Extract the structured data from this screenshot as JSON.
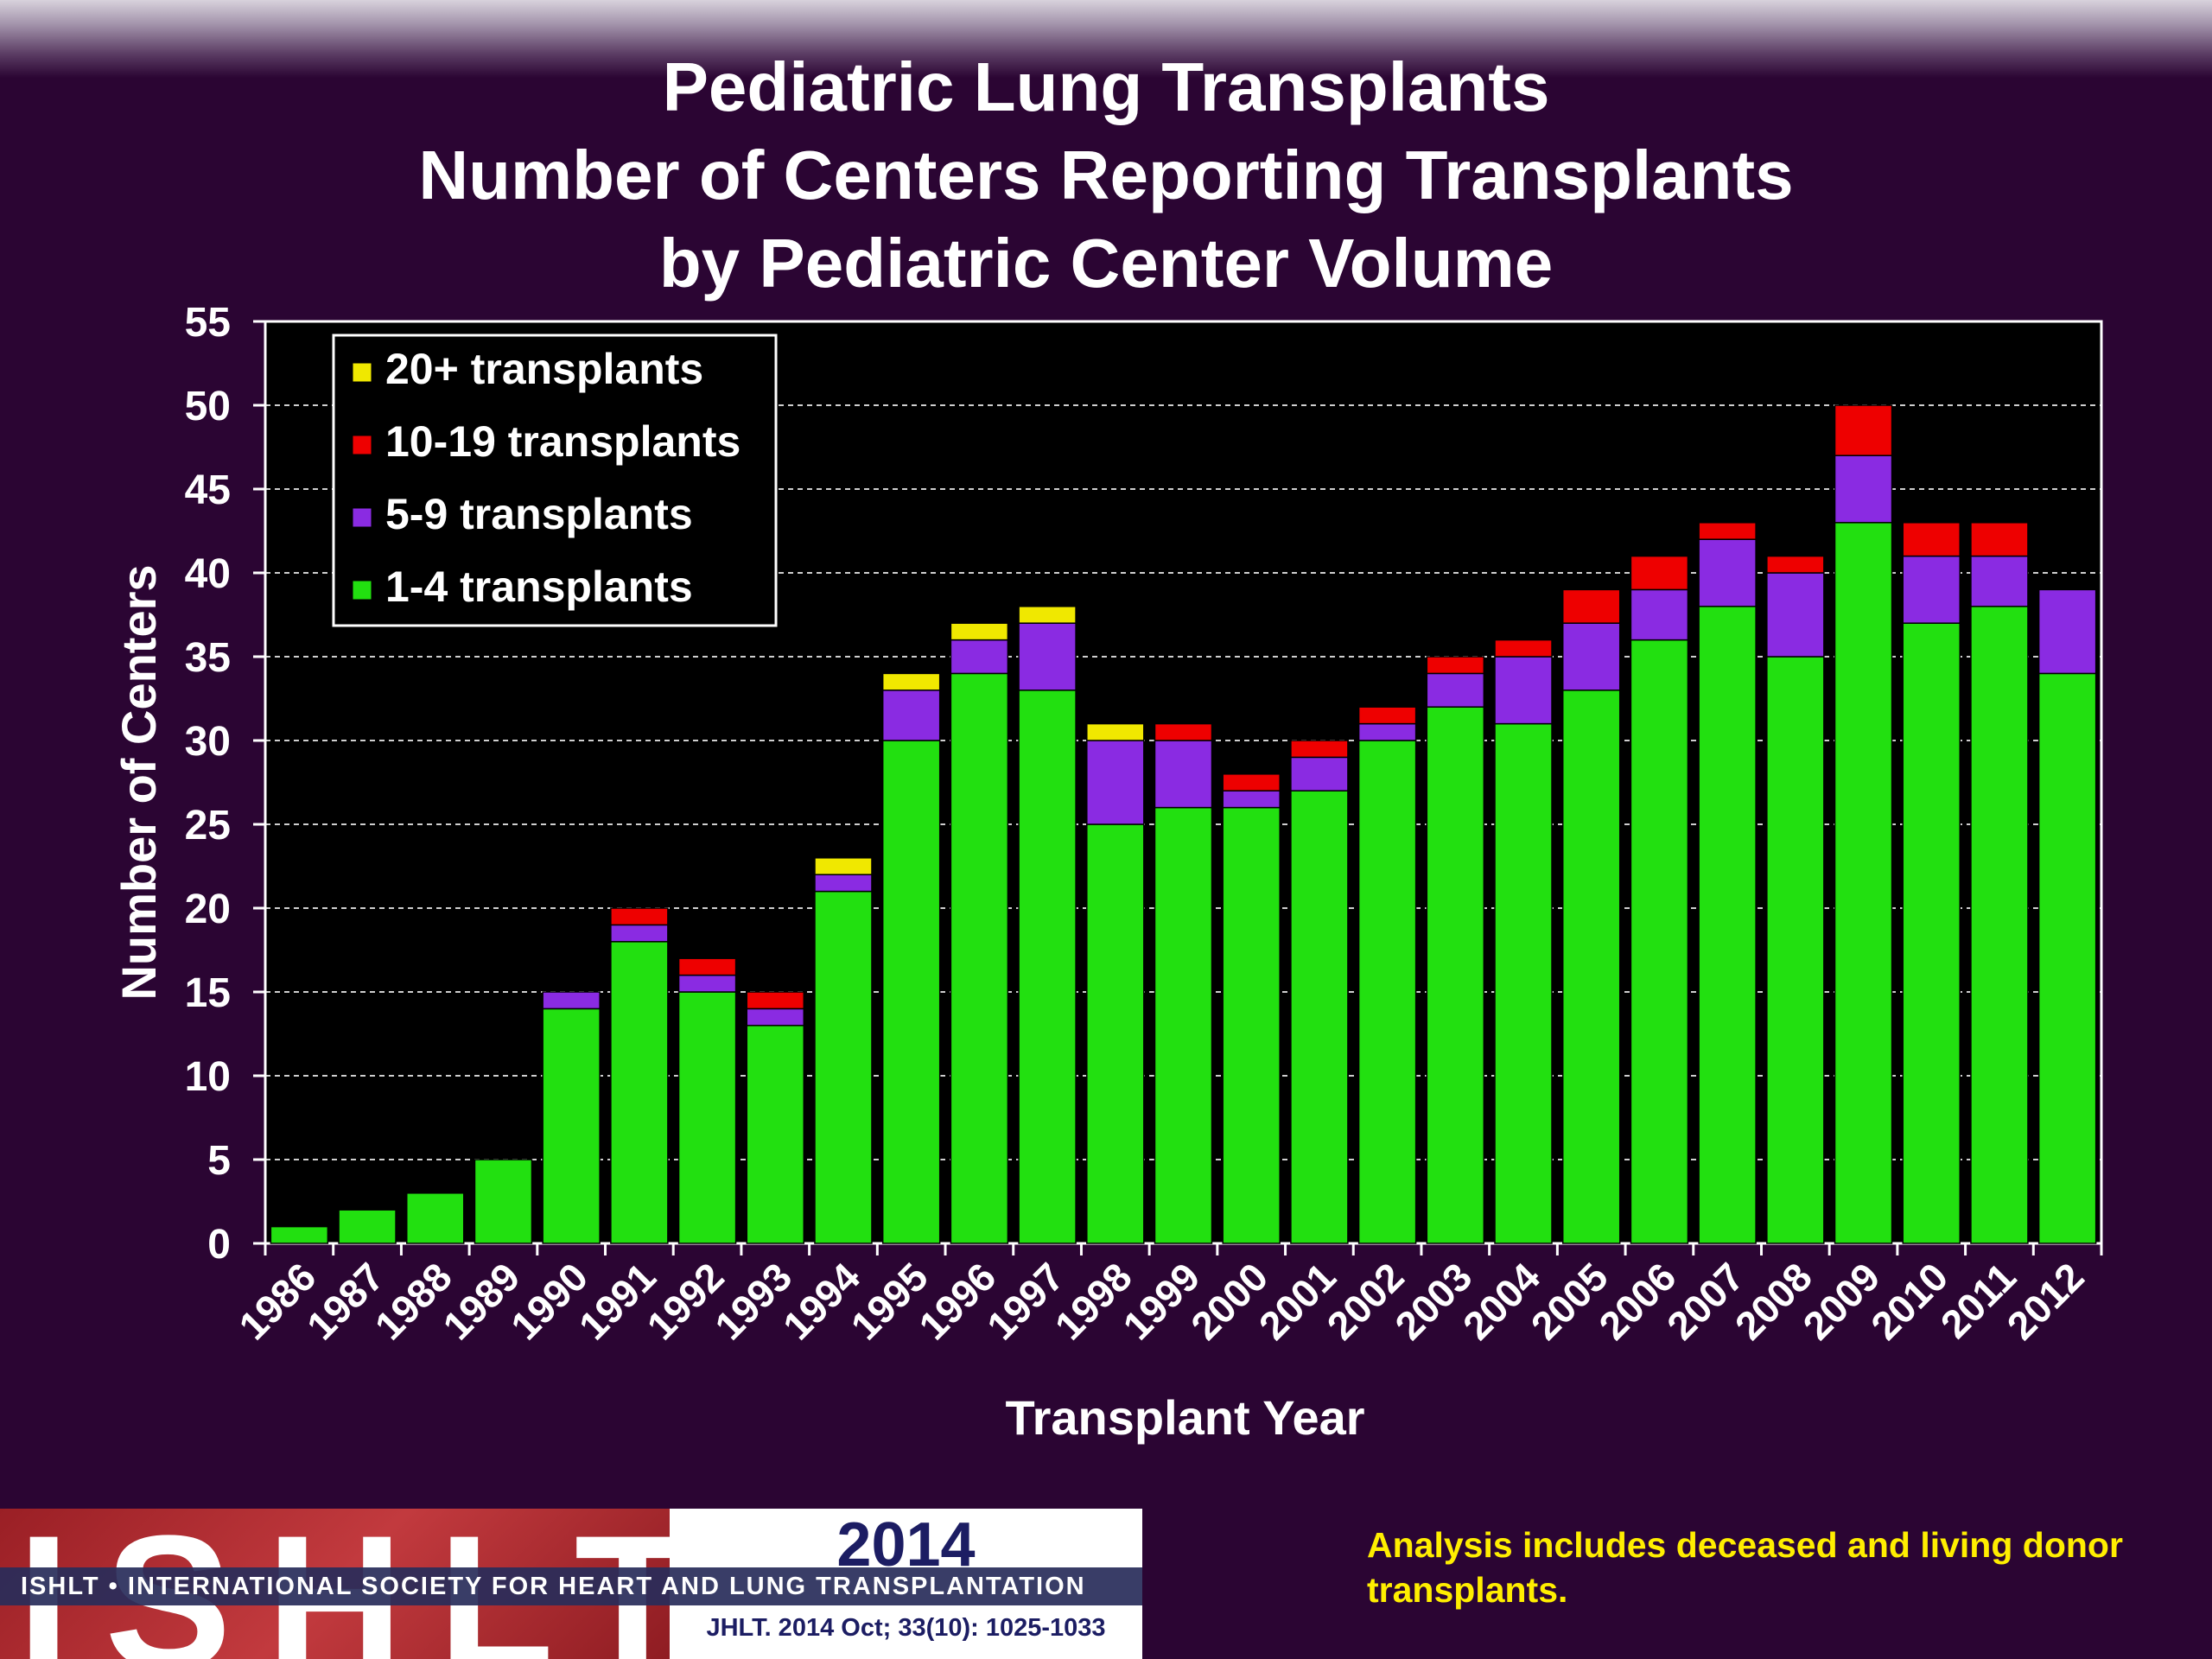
{
  "slide": {
    "title_lines": [
      "Pediatric Lung Transplants",
      "Number of Centers Reporting Transplants",
      "by Pediatric Center Volume"
    ],
    "note": "Analysis includes deceased and living donor transplants.",
    "footer": {
      "logo_text": "ISHLT",
      "society": "ISHLT • INTERNATIONAL SOCIETY FOR HEART AND LUNG TRANSPLANTATION",
      "year": "2014",
      "citation": "JHLT. 2014 Oct; 33(10): 1025-1033"
    }
  },
  "chart_data": {
    "type": "bar",
    "stacked": true,
    "title": "Pediatric Lung Transplants",
    "xlabel": "Transplant Year",
    "ylabel": "Number of Centers",
    "ylim": [
      0,
      55
    ],
    "yticks": [
      0,
      5,
      10,
      15,
      20,
      25,
      30,
      35,
      40,
      45,
      50,
      55
    ],
    "grid": true,
    "legend_position": "top-left",
    "categories": [
      "1986",
      "1987",
      "1988",
      "1989",
      "1990",
      "1991",
      "1992",
      "1993",
      "1994",
      "1995",
      "1996",
      "1997",
      "1998",
      "1999",
      "2000",
      "2001",
      "2002",
      "2003",
      "2004",
      "2005",
      "2006",
      "2007",
      "2008",
      "2009",
      "2010",
      "2011",
      "2012"
    ],
    "series": [
      {
        "name": "1-4 transplants",
        "color": "#22e010",
        "values": [
          1,
          2,
          3,
          5,
          14,
          18,
          15,
          13,
          21,
          30,
          34,
          33,
          25,
          26,
          26,
          27,
          30,
          32,
          31,
          33,
          36,
          38,
          35,
          43,
          37,
          38,
          34
        ]
      },
      {
        "name": "5-9 transplants",
        "color": "#8a2be2",
        "values": [
          0,
          0,
          0,
          0,
          1,
          1,
          1,
          1,
          1,
          3,
          2,
          4,
          5,
          4,
          1,
          2,
          1,
          2,
          4,
          4,
          3,
          4,
          5,
          4,
          4,
          3,
          5
        ]
      },
      {
        "name": "10-19 transplants",
        "color": "#ee0000",
        "values": [
          0,
          0,
          0,
          0,
          0,
          1,
          1,
          1,
          0,
          0,
          0,
          0,
          0,
          1,
          1,
          1,
          1,
          1,
          1,
          2,
          2,
          1,
          1,
          3,
          2,
          2,
          0
        ]
      },
      {
        "name": "20+ transplants",
        "color": "#f0e800",
        "values": [
          0,
          0,
          0,
          0,
          0,
          0,
          0,
          0,
          1,
          1,
          1,
          1,
          1,
          0,
          0,
          0,
          0,
          0,
          0,
          0,
          0,
          0,
          0,
          0,
          0,
          0,
          0
        ]
      }
    ]
  }
}
